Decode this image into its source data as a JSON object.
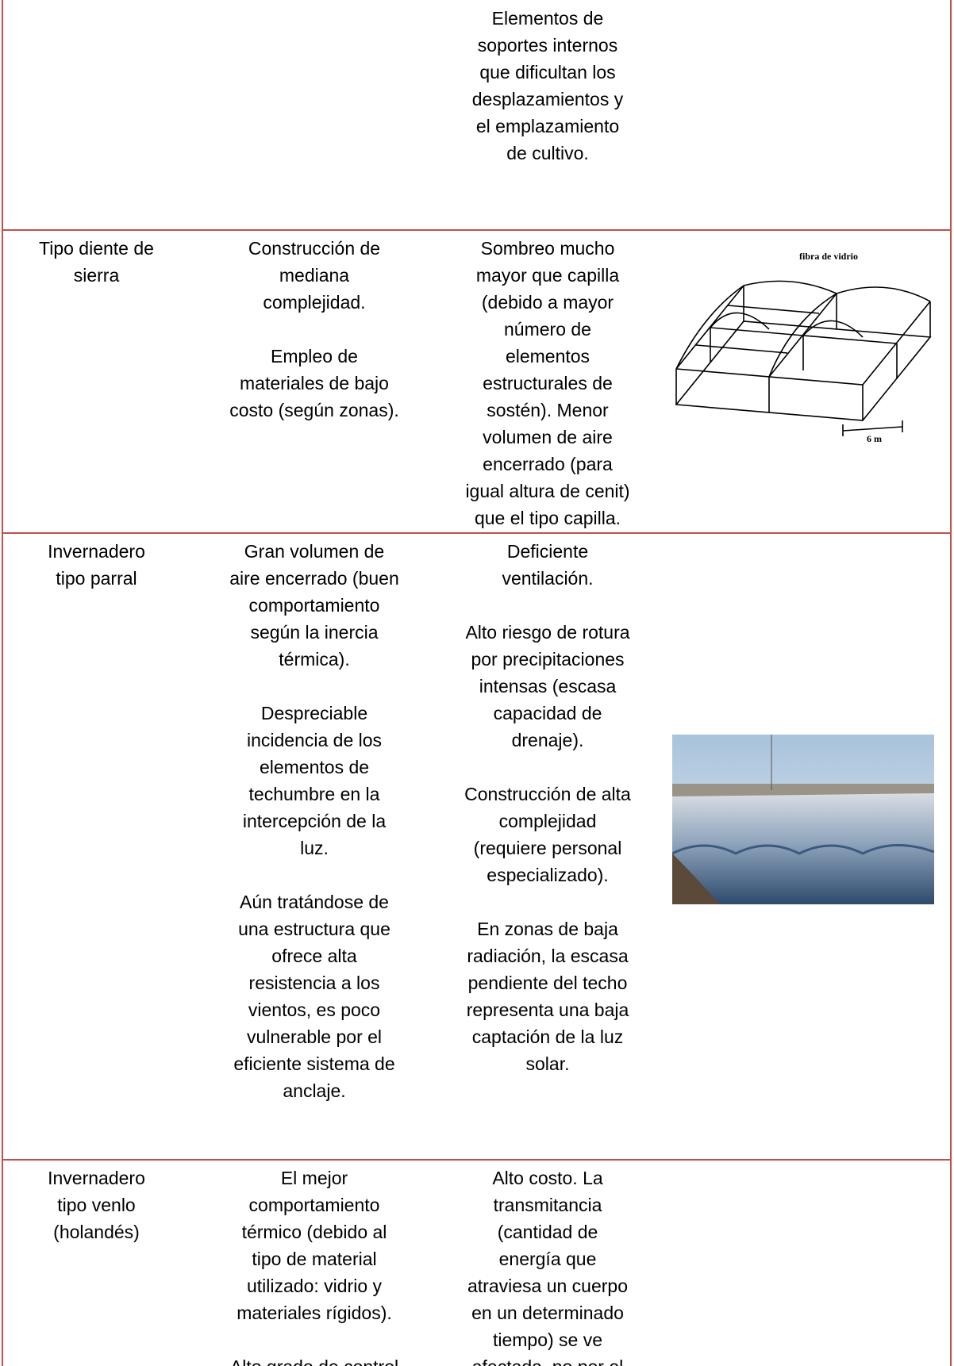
{
  "table": {
    "rows": [
      {
        "cells": [
          [],
          [],
          [
            [
              "Elementos de",
              "soportes internos",
              "que dificultan los",
              "desplazamientos y",
              "el emplazamiento",
              "de cultivo."
            ]
          ]
        ]
      },
      {
        "cells": [
          [
            [
              "Tipo diente de",
              "sierra"
            ]
          ],
          [
            [
              "Construcción de",
              "mediana",
              "complejidad."
            ],
            [
              "Empleo de",
              "materiales de bajo",
              "costo (según zonas)."
            ]
          ],
          [
            [
              "Sombreo mucho",
              "mayor que capilla",
              "(debido a mayor",
              "número de",
              "elementos",
              "estructurales de",
              "sostén). Menor",
              "volumen de aire",
              "encerrado (para",
              "igual altura de cenit)",
              "que el tipo capilla."
            ]
          ]
        ],
        "figure": {
          "label": "fibra de vidrio",
          "dimension": "6 m"
        }
      },
      {
        "cells": [
          [
            [
              "Invernadero",
              "tipo parral"
            ]
          ],
          [
            [
              "Gran volumen de",
              "aire encerrado (buen",
              "comportamiento",
              "según la inercia",
              "térmica)."
            ],
            [
              "Despreciable",
              "incidencia de los",
              "elementos de",
              "techumbre en la",
              "intercepción de la",
              "luz."
            ],
            [
              "Aún tratándose de",
              "una estructura que",
              "ofrece alta",
              "resistencia a los",
              "vientos, es poco",
              "vulnerable por el",
              "eficiente sistema de",
              "anclaje."
            ]
          ],
          [
            [
              "Deficiente",
              "ventilación."
            ],
            [
              "Alto riesgo de rotura",
              "por precipitaciones",
              "intensas (escasa",
              "capacidad de",
              "drenaje)."
            ],
            [
              "Construcción de alta",
              "complejidad",
              "(requiere personal",
              "especializado)."
            ],
            [
              "En zonas de baja",
              "radiación, la escasa",
              "pendiente del techo",
              "representa una baja",
              "captación de la luz",
              "solar."
            ]
          ]
        ]
      },
      {
        "cells": [
          [
            [
              "Invernadero",
              "tipo venlo",
              "(holandés)"
            ]
          ],
          [
            [
              "El mejor",
              "comportamiento",
              "térmico (debido al",
              "tipo de material",
              "utilizado: vidrio y",
              "materiales rígidos)."
            ],
            [
              "Alto grado de control"
            ]
          ],
          [
            [
              "Alto costo. La",
              "transmitancia",
              "(cantidad de",
              "energía que",
              "atraviesa un cuerpo",
              "en un determinado",
              "tiempo) se ve",
              "afectada, no por el"
            ]
          ]
        ]
      }
    ]
  }
}
